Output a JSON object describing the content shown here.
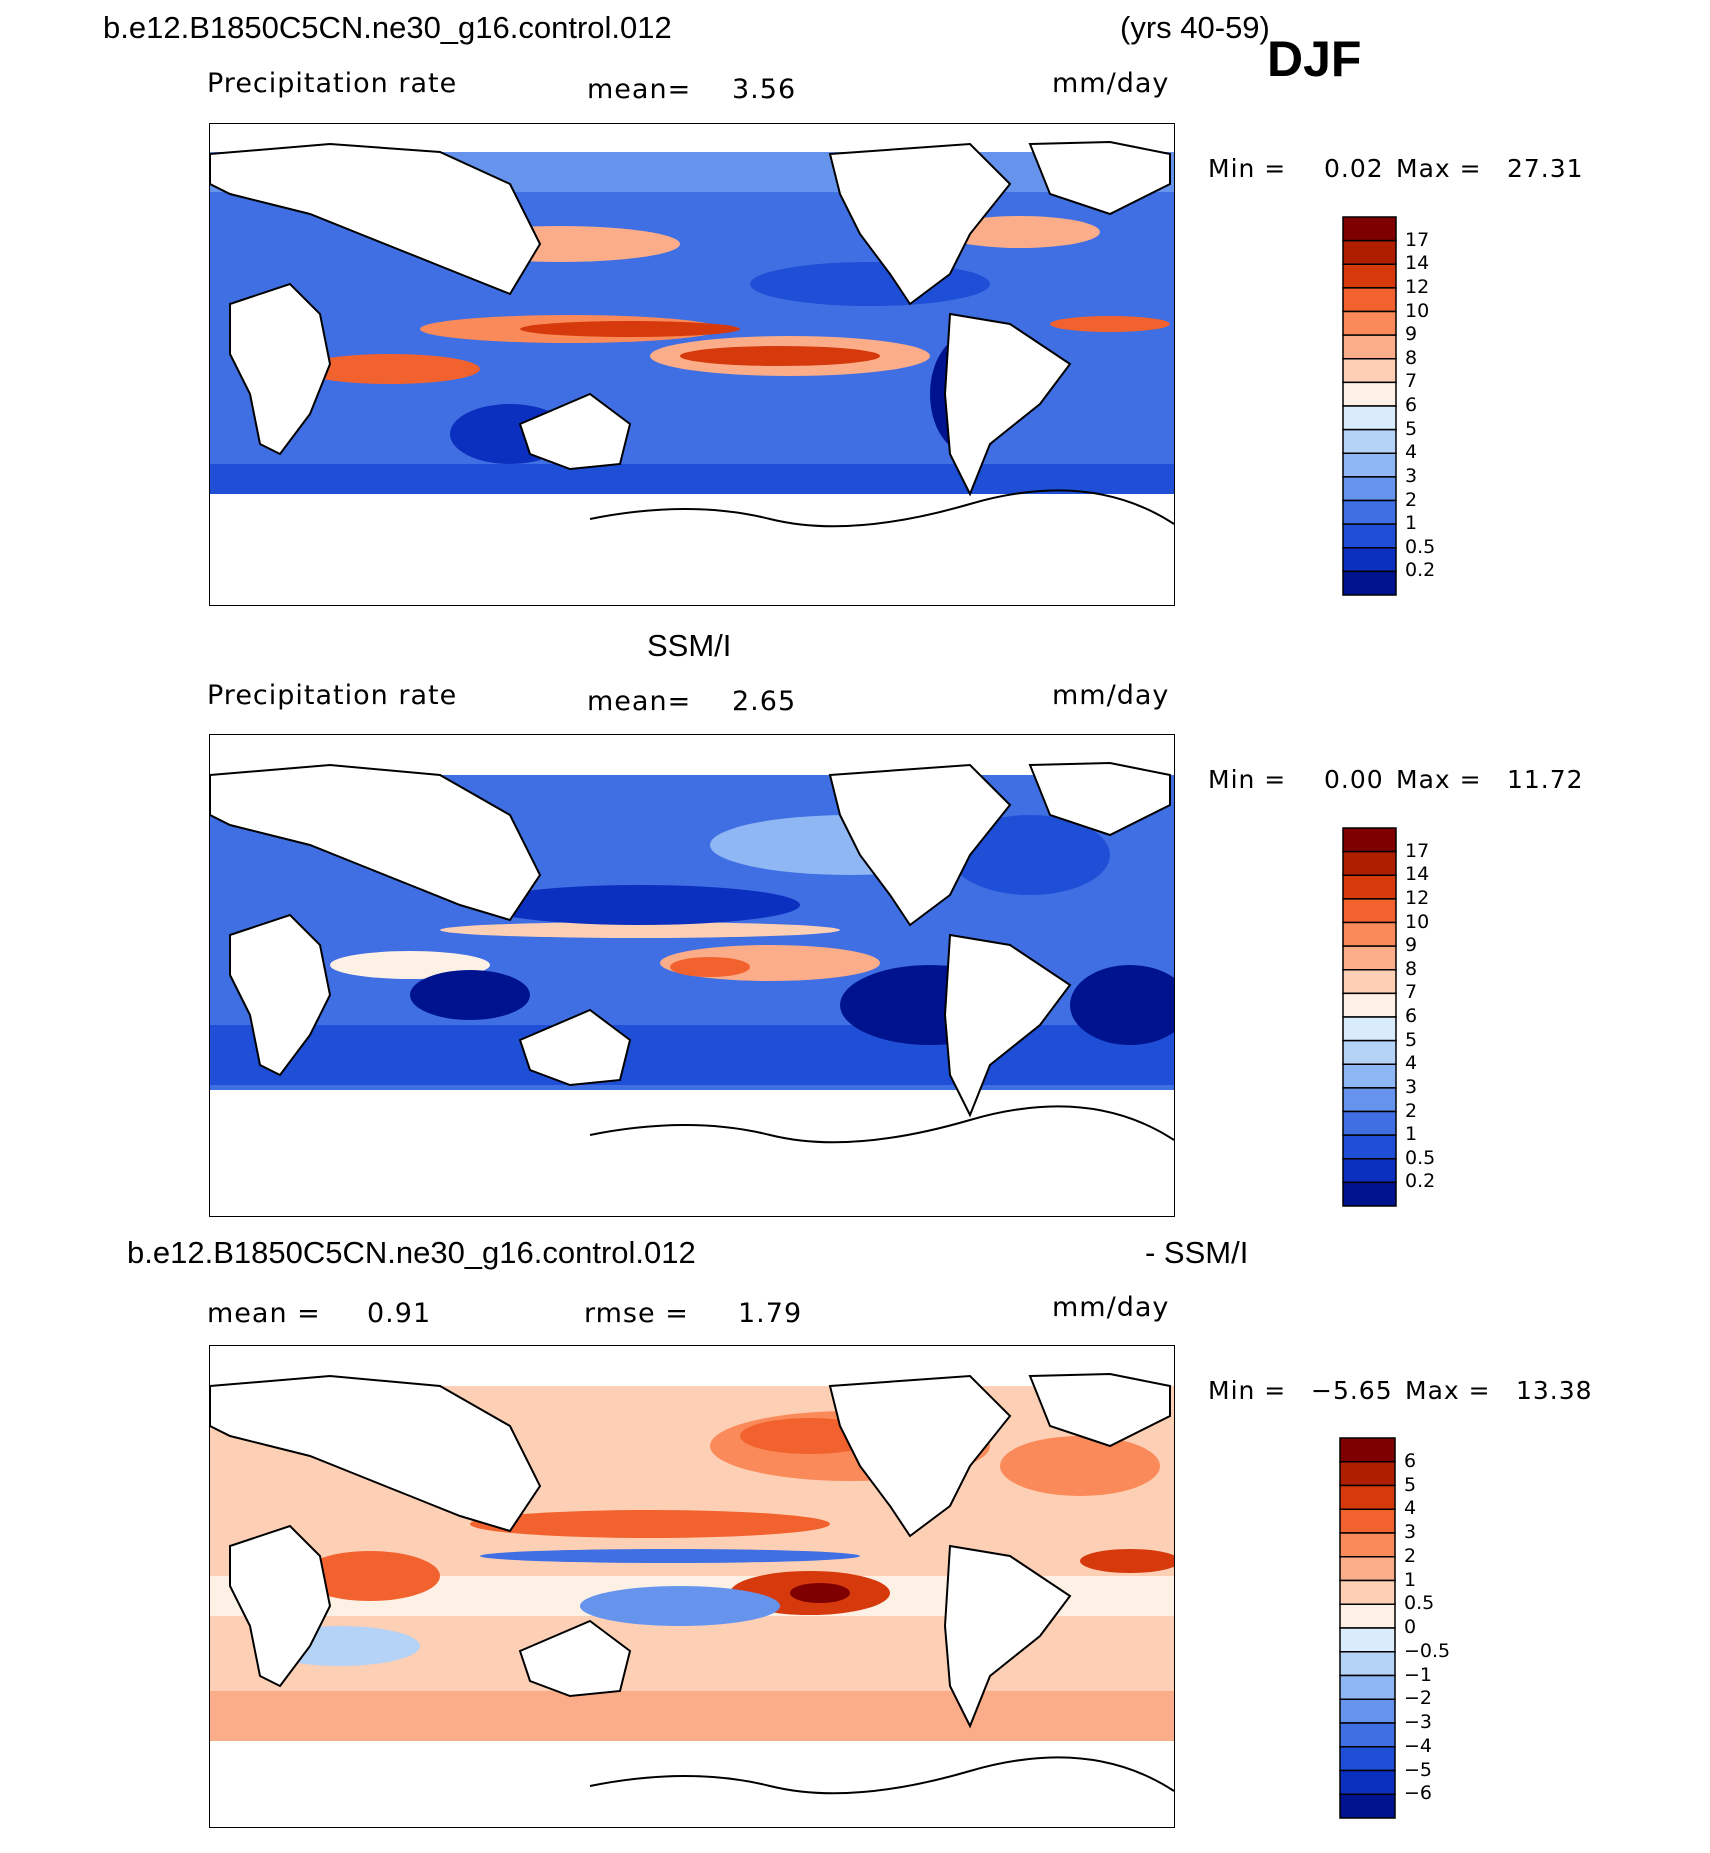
{
  "header": {
    "case_name": "b.e12.B1850C5CN.ne30_g16.control.012",
    "years": "(yrs 40-59)",
    "season": "DJF"
  },
  "panels": [
    {
      "id": "model",
      "title": "",
      "variable": "Precipitation rate",
      "stat_label": "mean=",
      "stat_value": "3.56",
      "units": "mm/day",
      "min_label": "Min =",
      "min_value": "0.02",
      "max_label": "Max =",
      "max_value": "27.31"
    },
    {
      "id": "obs",
      "title": "SSM/I",
      "variable": "Precipitation rate",
      "stat_label": "mean=",
      "stat_value": "2.65",
      "units": "mm/day",
      "min_label": "Min =",
      "min_value": "0.00",
      "max_label": "Max =",
      "max_value": "11.72"
    },
    {
      "id": "diff",
      "title_left": "b.e12.B1850C5CN.ne30_g16.control.012",
      "title_right": "- SSM/I",
      "stat_label": "mean =",
      "stat_value": "0.91",
      "rmse_label": "rmse =",
      "rmse_value": "1.79",
      "units": "mm/day",
      "min_label": "Min =",
      "min_value": "−5.65",
      "max_label": "Max =",
      "max_value": "13.38"
    }
  ],
  "colorbars": {
    "precip": {
      "levels": [
        "17",
        "14",
        "12",
        "10",
        "9",
        "8",
        "7",
        "6",
        "5",
        "4",
        "3",
        "2",
        "1",
        "0.5",
        "0.2"
      ],
      "colors": [
        "#7f0000",
        "#b01e00",
        "#d63a0c",
        "#f2622e",
        "#fa8a5a",
        "#fbac88",
        "#fdd0b5",
        "#fdf0e4",
        "#d8ecfb",
        "#b5d3f7",
        "#8fb7f3",
        "#6694ec",
        "#3f6fe2",
        "#1f4fd6",
        "#0b2fbf",
        "#00138f"
      ]
    },
    "diff": {
      "levels": [
        "6",
        "5",
        "4",
        "3",
        "2",
        "1",
        "0.5",
        "0",
        "−0.5",
        "−1",
        "−2",
        "−3",
        "−4",
        "−5",
        "−6"
      ],
      "colors": [
        "#7f0000",
        "#b01e00",
        "#d63a0c",
        "#f2622e",
        "#fa8a5a",
        "#fbac88",
        "#fdd0b5",
        "#fdf0e4",
        "#d8ecfb",
        "#b5d3f7",
        "#8fb7f3",
        "#6694ec",
        "#3f6fe2",
        "#1f4fd6",
        "#0b2fbf",
        "#00138f"
      ]
    }
  }
}
